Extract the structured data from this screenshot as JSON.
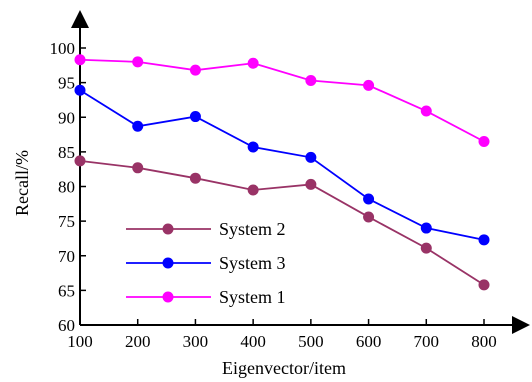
{
  "chart_data": {
    "type": "line",
    "title": "",
    "xlabel": "Eigenvector/item",
    "ylabel": "Recall/%",
    "x": [
      100,
      200,
      300,
      400,
      500,
      600,
      700,
      800
    ],
    "xlim": [
      100,
      800
    ],
    "ylim": [
      60,
      100
    ],
    "xticks": [
      "100",
      "200",
      "300",
      "400",
      "500",
      "600",
      "700",
      "800"
    ],
    "yticks": [
      "60",
      "65",
      "70",
      "75",
      "80",
      "85",
      "90",
      "95",
      "100"
    ],
    "grid": false,
    "legend_position": "bottom-left",
    "legend_order": [
      1,
      2,
      0
    ],
    "series": [
      {
        "name": "System 1",
        "color": "#ff00ff",
        "values": [
          98.3,
          98.0,
          96.8,
          97.8,
          95.3,
          94.6,
          90.9,
          86.5
        ]
      },
      {
        "name": "System 2",
        "color": "#993366",
        "values": [
          83.7,
          82.7,
          81.2,
          79.5,
          80.3,
          75.6,
          71.1,
          65.8
        ]
      },
      {
        "name": "System 3",
        "color": "#0000ff",
        "values": [
          93.9,
          88.7,
          90.1,
          85.7,
          84.2,
          78.2,
          74.0,
          72.3
        ]
      }
    ]
  }
}
